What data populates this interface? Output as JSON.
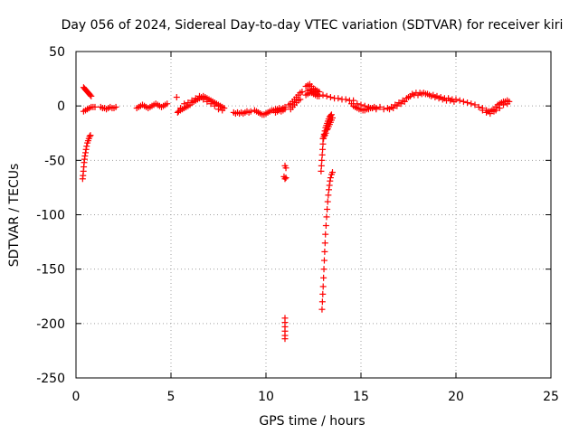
{
  "chart_data": {
    "type": "scatter",
    "title": "Day 056 of 2024, Sidereal Day-to-day VTEC variation (SDTVAR) for receiver kiri",
    "xlabel": "GPS time / hours",
    "ylabel": "SDTVAR / TECUs",
    "xlim": [
      0,
      25
    ],
    "ylim": [
      -250,
      50
    ],
    "xticks": [
      0,
      5,
      10,
      15,
      20,
      25
    ],
    "yticks": [
      -250,
      -200,
      -150,
      -100,
      -50,
      0,
      50
    ],
    "xtick_labels": [
      "0",
      "5",
      "10",
      "15",
      "20",
      "25"
    ],
    "ytick_labels": [
      "-250",
      "-200",
      "-150",
      "-100",
      "-50",
      "0",
      "50"
    ],
    "grid": true,
    "marker": "+",
    "colors": {
      "series": "#ff0000",
      "grid": "#a0a0a0",
      "axis": "#000000"
    },
    "series": [
      {
        "name": "SDTVAR",
        "points": [
          [
            0.35,
            -67
          ],
          [
            0.37,
            -64
          ],
          [
            0.39,
            -60
          ],
          [
            0.41,
            -56
          ],
          [
            0.43,
            -52
          ],
          [
            0.45,
            -49
          ],
          [
            0.47,
            -46
          ],
          [
            0.5,
            -43
          ],
          [
            0.53,
            -40
          ],
          [
            0.56,
            -37
          ],
          [
            0.6,
            -34
          ],
          [
            0.64,
            -32
          ],
          [
            0.68,
            -30
          ],
          [
            0.72,
            -28
          ],
          [
            0.76,
            -27
          ],
          [
            0.4,
            17
          ],
          [
            0.45,
            16
          ],
          [
            0.5,
            15
          ],
          [
            0.55,
            14
          ],
          [
            0.6,
            13
          ],
          [
            0.65,
            12
          ],
          [
            0.7,
            11
          ],
          [
            0.75,
            10
          ],
          [
            0.8,
            9
          ],
          [
            0.4,
            -5
          ],
          [
            0.5,
            -4
          ],
          [
            0.6,
            -3
          ],
          [
            0.7,
            -2
          ],
          [
            0.8,
            -1
          ],
          [
            0.9,
            -1
          ],
          [
            1.0,
            -1
          ],
          [
            1.3,
            -1
          ],
          [
            1.4,
            -2
          ],
          [
            1.5,
            -2
          ],
          [
            1.6,
            -3
          ],
          [
            1.7,
            -2
          ],
          [
            1.8,
            -1
          ],
          [
            1.9,
            -2
          ],
          [
            2.0,
            -2
          ],
          [
            2.1,
            -1
          ],
          [
            3.2,
            -2
          ],
          [
            3.3,
            -1
          ],
          [
            3.4,
            0
          ],
          [
            3.5,
            1
          ],
          [
            3.6,
            0
          ],
          [
            3.7,
            -1
          ],
          [
            3.8,
            -2
          ],
          [
            3.9,
            -1
          ],
          [
            4.0,
            0
          ],
          [
            4.1,
            1
          ],
          [
            4.2,
            2
          ],
          [
            4.3,
            1
          ],
          [
            4.4,
            0
          ],
          [
            4.5,
            -1
          ],
          [
            4.6,
            0
          ],
          [
            4.7,
            1
          ],
          [
            4.8,
            2
          ],
          [
            5.3,
            8
          ],
          [
            5.35,
            -6
          ],
          [
            5.4,
            -5
          ],
          [
            5.5,
            -4
          ],
          [
            5.6,
            -3
          ],
          [
            5.7,
            -2
          ],
          [
            5.8,
            -1
          ],
          [
            5.9,
            0
          ],
          [
            6.0,
            1
          ],
          [
            6.1,
            3
          ],
          [
            6.2,
            4
          ],
          [
            6.3,
            5
          ],
          [
            6.4,
            6
          ],
          [
            6.5,
            7
          ],
          [
            6.6,
            8
          ],
          [
            6.7,
            9
          ],
          [
            6.8,
            8
          ],
          [
            6.9,
            7
          ],
          [
            7.0,
            6
          ],
          [
            7.1,
            5
          ],
          [
            7.2,
            4
          ],
          [
            7.3,
            3
          ],
          [
            7.4,
            2
          ],
          [
            7.5,
            1
          ],
          [
            7.6,
            0
          ],
          [
            7.7,
            -1
          ],
          [
            7.8,
            -2
          ],
          [
            5.5,
            -2
          ],
          [
            5.7,
            2
          ],
          [
            5.9,
            3
          ],
          [
            6.1,
            5
          ],
          [
            6.3,
            7
          ],
          [
            6.5,
            9
          ],
          [
            6.7,
            6
          ],
          [
            6.9,
            4
          ],
          [
            7.1,
            2
          ],
          [
            7.3,
            0
          ],
          [
            7.5,
            -3
          ],
          [
            7.7,
            -4
          ],
          [
            8.3,
            -6
          ],
          [
            8.4,
            -7
          ],
          [
            8.5,
            -6
          ],
          [
            8.6,
            -7
          ],
          [
            8.7,
            -6
          ],
          [
            8.8,
            -7
          ],
          [
            8.9,
            -6
          ],
          [
            9.0,
            -5
          ],
          [
            9.1,
            -6
          ],
          [
            9.2,
            -5
          ],
          [
            9.4,
            -4
          ],
          [
            9.5,
            -5
          ],
          [
            9.6,
            -6
          ],
          [
            9.7,
            -7
          ],
          [
            9.8,
            -8
          ],
          [
            9.9,
            -8
          ],
          [
            10.0,
            -7
          ],
          [
            10.1,
            -6
          ],
          [
            10.2,
            -5
          ],
          [
            10.3,
            -4
          ],
          [
            10.4,
            -4
          ],
          [
            10.5,
            -3
          ],
          [
            10.6,
            -3
          ],
          [
            10.7,
            -2
          ],
          [
            10.8,
            -3
          ],
          [
            10.9,
            -2
          ],
          [
            11.0,
            -1
          ],
          [
            10.5,
            -6
          ],
          [
            10.6,
            -5
          ],
          [
            10.7,
            -4
          ],
          [
            10.8,
            -5
          ],
          [
            10.9,
            -4
          ],
          [
            11.0,
            -3
          ],
          [
            11.0,
            -55
          ],
          [
            11.05,
            -57
          ],
          [
            10.95,
            -65
          ],
          [
            11.0,
            -67
          ],
          [
            11.05,
            -66
          ],
          [
            11.0,
            -195
          ],
          [
            11.0,
            -199
          ],
          [
            11.0,
            -203
          ],
          [
            11.0,
            -207
          ],
          [
            11.0,
            -211
          ],
          [
            11.0,
            -214
          ],
          [
            11.2,
            1
          ],
          [
            11.3,
            2
          ],
          [
            11.4,
            4
          ],
          [
            11.5,
            6
          ],
          [
            11.6,
            8
          ],
          [
            11.7,
            10
          ],
          [
            11.8,
            12
          ],
          [
            11.9,
            13
          ],
          [
            11.3,
            -3
          ],
          [
            11.4,
            -1
          ],
          [
            11.5,
            1
          ],
          [
            11.6,
            3
          ],
          [
            11.7,
            5
          ],
          [
            11.8,
            6
          ],
          [
            12.1,
            18
          ],
          [
            12.2,
            19
          ],
          [
            12.3,
            20
          ],
          [
            12.4,
            18
          ],
          [
            12.5,
            16
          ],
          [
            12.6,
            15
          ],
          [
            12.7,
            14
          ],
          [
            12.8,
            13
          ],
          [
            12.1,
            10
          ],
          [
            12.2,
            11
          ],
          [
            12.3,
            12
          ],
          [
            12.4,
            12
          ],
          [
            12.5,
            11
          ],
          [
            12.6,
            10
          ],
          [
            12.7,
            9
          ],
          [
            12.8,
            9
          ],
          [
            12.2,
            14
          ],
          [
            12.3,
            15
          ],
          [
            12.4,
            14
          ],
          [
            12.5,
            13
          ],
          [
            12.6,
            12
          ],
          [
            12.7,
            11
          ],
          [
            13.0,
            10
          ],
          [
            13.2,
            9
          ],
          [
            13.4,
            8
          ],
          [
            13.6,
            7
          ],
          [
            13.8,
            7
          ],
          [
            14.0,
            6
          ],
          [
            14.2,
            6
          ],
          [
            14.4,
            5
          ],
          [
            14.6,
            5
          ],
          [
            12.9,
            -60
          ],
          [
            12.92,
            -55
          ],
          [
            12.94,
            -50
          ],
          [
            12.96,
            -45
          ],
          [
            12.98,
            -40
          ],
          [
            13.0,
            -35
          ],
          [
            13.03,
            -30
          ],
          [
            13.06,
            -26
          ],
          [
            13.1,
            -23
          ],
          [
            13.14,
            -20
          ],
          [
            13.18,
            -18
          ],
          [
            13.22,
            -16
          ],
          [
            13.26,
            -14
          ],
          [
            13.3,
            -12
          ],
          [
            13.35,
            -10
          ],
          [
            13.4,
            -9
          ],
          [
            13.45,
            -8
          ],
          [
            13.0,
            -30
          ],
          [
            13.05,
            -28
          ],
          [
            13.1,
            -27
          ],
          [
            13.15,
            -25
          ],
          [
            13.2,
            -22
          ],
          [
            13.25,
            -21
          ],
          [
            13.3,
            -19
          ],
          [
            13.35,
            -17
          ],
          [
            13.4,
            -15
          ],
          [
            13.45,
            -13
          ],
          [
            13.5,
            -11
          ],
          [
            12.95,
            -187
          ],
          [
            12.97,
            -180
          ],
          [
            12.99,
            -173
          ],
          [
            13.01,
            -166
          ],
          [
            13.03,
            -158
          ],
          [
            13.05,
            -150
          ],
          [
            13.07,
            -142
          ],
          [
            13.09,
            -134
          ],
          [
            13.11,
            -126
          ],
          [
            13.13,
            -118
          ],
          [
            13.16,
            -110
          ],
          [
            13.19,
            -102
          ],
          [
            13.22,
            -95
          ],
          [
            13.25,
            -88
          ],
          [
            13.28,
            -82
          ],
          [
            13.31,
            -77
          ],
          [
            13.34,
            -73
          ],
          [
            13.37,
            -69
          ],
          [
            13.4,
            -66
          ],
          [
            13.45,
            -63
          ],
          [
            13.5,
            -61
          ],
          [
            14.5,
            2
          ],
          [
            14.6,
            0
          ],
          [
            14.7,
            -1
          ],
          [
            14.8,
            -2
          ],
          [
            14.9,
            -3
          ],
          [
            15.0,
            -3
          ],
          [
            15.1,
            -4
          ],
          [
            15.2,
            -4
          ],
          [
            15.3,
            -3
          ],
          [
            15.4,
            -3
          ],
          [
            15.5,
            -2
          ],
          [
            15.6,
            -2
          ],
          [
            15.7,
            -1
          ],
          [
            14.8,
            2
          ],
          [
            15.0,
            1
          ],
          [
            15.2,
            0
          ],
          [
            15.4,
            -1
          ],
          [
            15.6,
            -2
          ],
          [
            15.8,
            -3
          ],
          [
            15.8,
            -2
          ],
          [
            16.0,
            -1
          ],
          [
            16.2,
            -3
          ],
          [
            16.4,
            -2
          ],
          [
            16.6,
            -1
          ],
          [
            16.8,
            1
          ],
          [
            17.0,
            3
          ],
          [
            17.2,
            5
          ],
          [
            17.4,
            7
          ],
          [
            17.6,
            9
          ],
          [
            17.8,
            10
          ],
          [
            18.0,
            10
          ],
          [
            18.2,
            11
          ],
          [
            18.4,
            11
          ],
          [
            18.6,
            10
          ],
          [
            18.8,
            10
          ],
          [
            19.0,
            9
          ],
          [
            19.2,
            8
          ],
          [
            19.4,
            7
          ],
          [
            19.6,
            7
          ],
          [
            19.8,
            6
          ],
          [
            20.0,
            6
          ],
          [
            20.2,
            5
          ],
          [
            20.4,
            4
          ],
          [
            20.6,
            3
          ],
          [
            16.5,
            -3
          ],
          [
            16.7,
            -2
          ],
          [
            16.9,
            0
          ],
          [
            17.1,
            2
          ],
          [
            17.3,
            4
          ],
          [
            17.5,
            8
          ],
          [
            17.7,
            11
          ],
          [
            17.9,
            12
          ],
          [
            18.1,
            12
          ],
          [
            18.3,
            12
          ],
          [
            18.5,
            11
          ],
          [
            18.7,
            9
          ],
          [
            18.9,
            8
          ],
          [
            19.1,
            7
          ],
          [
            19.3,
            6
          ],
          [
            19.5,
            5
          ],
          [
            19.7,
            5
          ],
          [
            19.9,
            4
          ],
          [
            20.8,
            2
          ],
          [
            21.0,
            1
          ],
          [
            21.2,
            -1
          ],
          [
            21.4,
            -2
          ],
          [
            21.6,
            -4
          ],
          [
            21.7,
            -5
          ],
          [
            21.8,
            -5
          ],
          [
            21.9,
            -4
          ],
          [
            22.0,
            -3
          ],
          [
            21.4,
            -4
          ],
          [
            21.6,
            -6
          ],
          [
            21.8,
            -7
          ],
          [
            22.0,
            -5
          ],
          [
            22.1,
            -1
          ],
          [
            22.2,
            1
          ],
          [
            22.3,
            2
          ],
          [
            22.4,
            3
          ],
          [
            22.5,
            4
          ],
          [
            22.6,
            4
          ],
          [
            22.7,
            5
          ],
          [
            22.8,
            4
          ],
          [
            22.1,
            -4
          ],
          [
            22.3,
            -2
          ],
          [
            22.5,
            1
          ],
          [
            22.7,
            2
          ]
        ]
      }
    ]
  }
}
